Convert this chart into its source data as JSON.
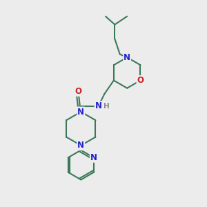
{
  "bg_color": "#ececec",
  "bond_color": "#3a7a5a",
  "bond_width": 1.5,
  "atom_colors": {
    "N": "#2222cc",
    "O": "#cc2222",
    "H": "#888888",
    "C": "#3a7a5a"
  },
  "font_size_atom": 8.5,
  "font_size_H": 7.5,
  "xlim": [
    0,
    10
  ],
  "ylim": [
    0,
    10
  ]
}
